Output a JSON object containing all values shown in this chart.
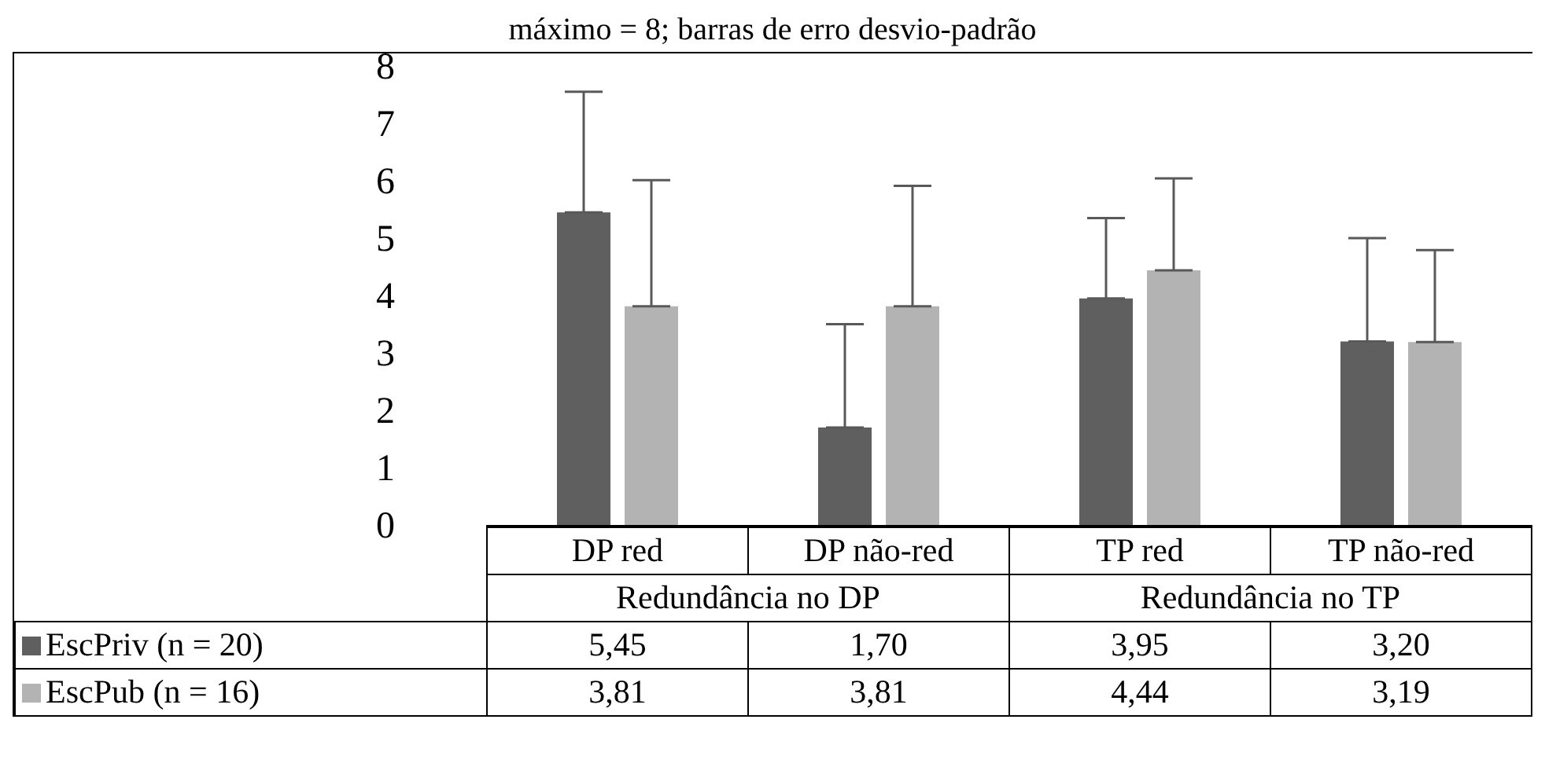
{
  "chart_data": {
    "type": "bar",
    "title": "máximo = 8; barras de erro desvio-padrão",
    "categories": [
      "DP red",
      "DP não-red",
      "TP red",
      "TP não-red"
    ],
    "series": [
      {
        "name": "EscPriv (n = 20)",
        "color": "#5f5f5f",
        "values": [
          5.45,
          1.7,
          3.95,
          3.2
        ],
        "value_labels": [
          "5,45",
          "1,70",
          "3,95",
          "3,20"
        ],
        "errors": [
          2.1,
          1.8,
          1.4,
          1.8
        ]
      },
      {
        "name": "EscPub (n = 16)",
        "color": "#b3b3b3",
        "values": [
          3.81,
          3.81,
          4.44,
          3.19
        ],
        "value_labels": [
          "3,81",
          "3,81",
          "4,44",
          "3,19"
        ],
        "errors": [
          2.2,
          2.1,
          1.6,
          1.6
        ]
      }
    ],
    "annotations": [
      "Redundância no DP",
      "Redundância no TP"
    ],
    "ylim": [
      0,
      8
    ],
    "yticks": [
      0,
      1,
      2,
      3,
      4,
      5,
      6,
      7,
      8
    ],
    "legend": "bottom"
  }
}
